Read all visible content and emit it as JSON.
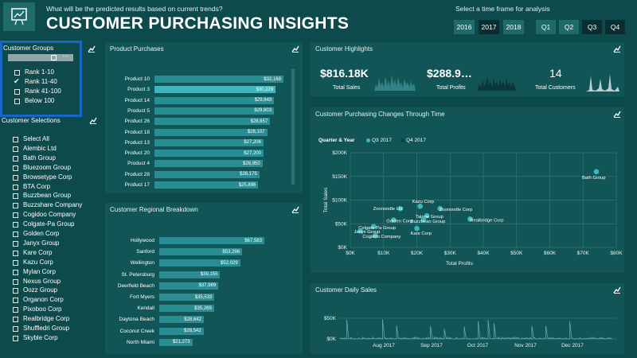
{
  "header": {
    "question": "What will be the predicted results based on current trends?",
    "title": "CUSTOMER PURCHASING INSIGHTS",
    "timeframe_label": "Select a time frame for analysis",
    "years": [
      {
        "label": "2016"
      },
      {
        "label": "2017"
      },
      {
        "label": "2018"
      }
    ],
    "quarters": [
      {
        "label": "Q1"
      },
      {
        "label": "Q2"
      },
      {
        "label": "Q3"
      },
      {
        "label": "Q4"
      }
    ],
    "selected_year": "2017",
    "selected_quarters": [
      "Q3",
      "Q4"
    ]
  },
  "customer_groups": {
    "title": "Customer Groups",
    "items": [
      {
        "label": "Rank 1-10",
        "checked": false
      },
      {
        "label": "Rank 11-40",
        "checked": true
      },
      {
        "label": "Rank 41-100",
        "checked": false
      },
      {
        "label": "Below 100",
        "checked": false
      }
    ]
  },
  "customer_selections": {
    "title": "Customer Selections",
    "items": [
      {
        "label": "Select All"
      },
      {
        "label": "Alembic Ltd"
      },
      {
        "label": "Bath Group"
      },
      {
        "label": "Bluezoom Group"
      },
      {
        "label": "Browsetype Corp"
      },
      {
        "label": "BTA Corp"
      },
      {
        "label": "Buzzbean Group"
      },
      {
        "label": "Buzzshare Company"
      },
      {
        "label": "Cogidoo Company"
      },
      {
        "label": "Colgate-Pa Group"
      },
      {
        "label": "Golden Corp"
      },
      {
        "label": "Janyx Group"
      },
      {
        "label": "Kare Corp"
      },
      {
        "label": "Kazu Corp"
      },
      {
        "label": "Mylan Corp"
      },
      {
        "label": "Nexus Group"
      },
      {
        "label": "Oozz Group"
      },
      {
        "label": "Organon Corp"
      },
      {
        "label": "Pixoboo Corp"
      },
      {
        "label": "Realbridge Corp"
      },
      {
        "label": "Shuffledri Group"
      },
      {
        "label": "Skyble Corp"
      }
    ]
  },
  "product_purchases": {
    "title": "Product Purchases",
    "highlight_color": "#3fb4bd",
    "bar_color": "#2b8d94",
    "chart_data": {
      "type": "bar",
      "orientation": "horizontal",
      "categories": [
        "Product 10",
        "Product 3",
        "Product 14",
        "Product 5",
        "Product 26",
        "Product 18",
        "Product 13",
        "Product 20",
        "Product 4",
        "Product 28",
        "Product 17"
      ],
      "values": [
        32168,
        30229,
        29843,
        29803,
        28857,
        28107,
        27206,
        27200,
        26950,
        26175,
        25896
      ],
      "labels": [
        "$32,168",
        "$30,229",
        "$29,843",
        "$29,803",
        "$28,857",
        "$28,107",
        "$27,206",
        "$27,200",
        "$26,950",
        "$26,175",
        "$25,896"
      ],
      "highlighted": "Product 3"
    }
  },
  "regional": {
    "title": "Customer Regional Breakdown",
    "chart_data": {
      "type": "bar",
      "orientation": "horizontal",
      "categories": [
        "Hollywood",
        "Sanford",
        "Wellington",
        "St. Petersburg",
        "Deerfield Beach",
        "Fort Myers",
        "Kendall",
        "Daytona Beach",
        "Coconut Creek",
        "North Miami"
      ],
      "values": [
        67583,
        53296,
        52029,
        39155,
        37989,
        35533,
        35269,
        28642,
        28542,
        21273
      ],
      "labels": [
        "$67,583",
        "$53,296",
        "$52,029",
        "$39,155",
        "$37,989",
        "$35,533",
        "$35,269",
        "$28,642",
        "$28,542",
        "$21,273"
      ]
    }
  },
  "highlights": {
    "title": "Customer Highlights",
    "total_sales_value": "$816.18K",
    "total_sales_label": "Total Sales",
    "total_profits_value": "$288.9…",
    "total_profits_label": "Total Profits",
    "total_customers_value": "14",
    "total_customers_label": "Total Customers"
  },
  "scatter": {
    "title": "Customer Purchasing Changes Through Time",
    "legend_title": "Quarter & Year",
    "legend_items": [
      {
        "label": "Q3 2017",
        "color": "#3fb4bd"
      },
      {
        "label": "Q4 2017",
        "color": "#0e3d3f"
      }
    ],
    "chart_data": {
      "type": "scatter",
      "xlabel": "Total Profits",
      "ylabel": "Total Sales",
      "xlim": [
        0,
        80000
      ],
      "ylim": [
        0,
        200000
      ],
      "x_ticks": [
        "$0K",
        "$10K",
        "$20K",
        "$30K",
        "$40K",
        "$50K",
        "$60K",
        "$70K",
        "$80K"
      ],
      "y_ticks": [
        "$0K",
        "$50K",
        "$100K",
        "$150K",
        "$200K"
      ],
      "points": [
        {
          "label": "Bath Group",
          "x": 74000,
          "y": 160000
        },
        {
          "label": "Kazu Corp",
          "x": 21000,
          "y": 87000
        },
        {
          "label": "Zoonoodle Ltd",
          "x": 15000,
          "y": 82000
        },
        {
          "label": "Zoonoodle Corp",
          "x": 27000,
          "y": 82000
        },
        {
          "label": "Talane Group",
          "x": 23000,
          "y": 67000
        },
        {
          "label": "Buzzbean Group",
          "x": 22000,
          "y": 59000
        },
        {
          "label": "Golden Corp",
          "x": 13000,
          "y": 58000
        },
        {
          "label": "Realbridge Corp",
          "x": 36000,
          "y": 60000
        },
        {
          "label": "Colgate-Pa Group",
          "x": 7000,
          "y": 44000
        },
        {
          "label": "Kare Corp",
          "x": 20000,
          "y": 40000
        },
        {
          "label": "Janyx Group",
          "x": 3000,
          "y": 35000
        },
        {
          "label": "Cogidoo Company",
          "x": 7500,
          "y": 25000
        }
      ]
    }
  },
  "daily": {
    "title": "Customer Daily Sales",
    "chart_data": {
      "type": "line",
      "y_ticks": [
        "$0K",
        "$50K"
      ],
      "ylim": [
        0,
        60000
      ],
      "x_ticks": [
        "Aug 2017",
        "Sep 2017",
        "Oct 2017",
        "Nov 2017",
        "Dec 2017"
      ]
    }
  }
}
